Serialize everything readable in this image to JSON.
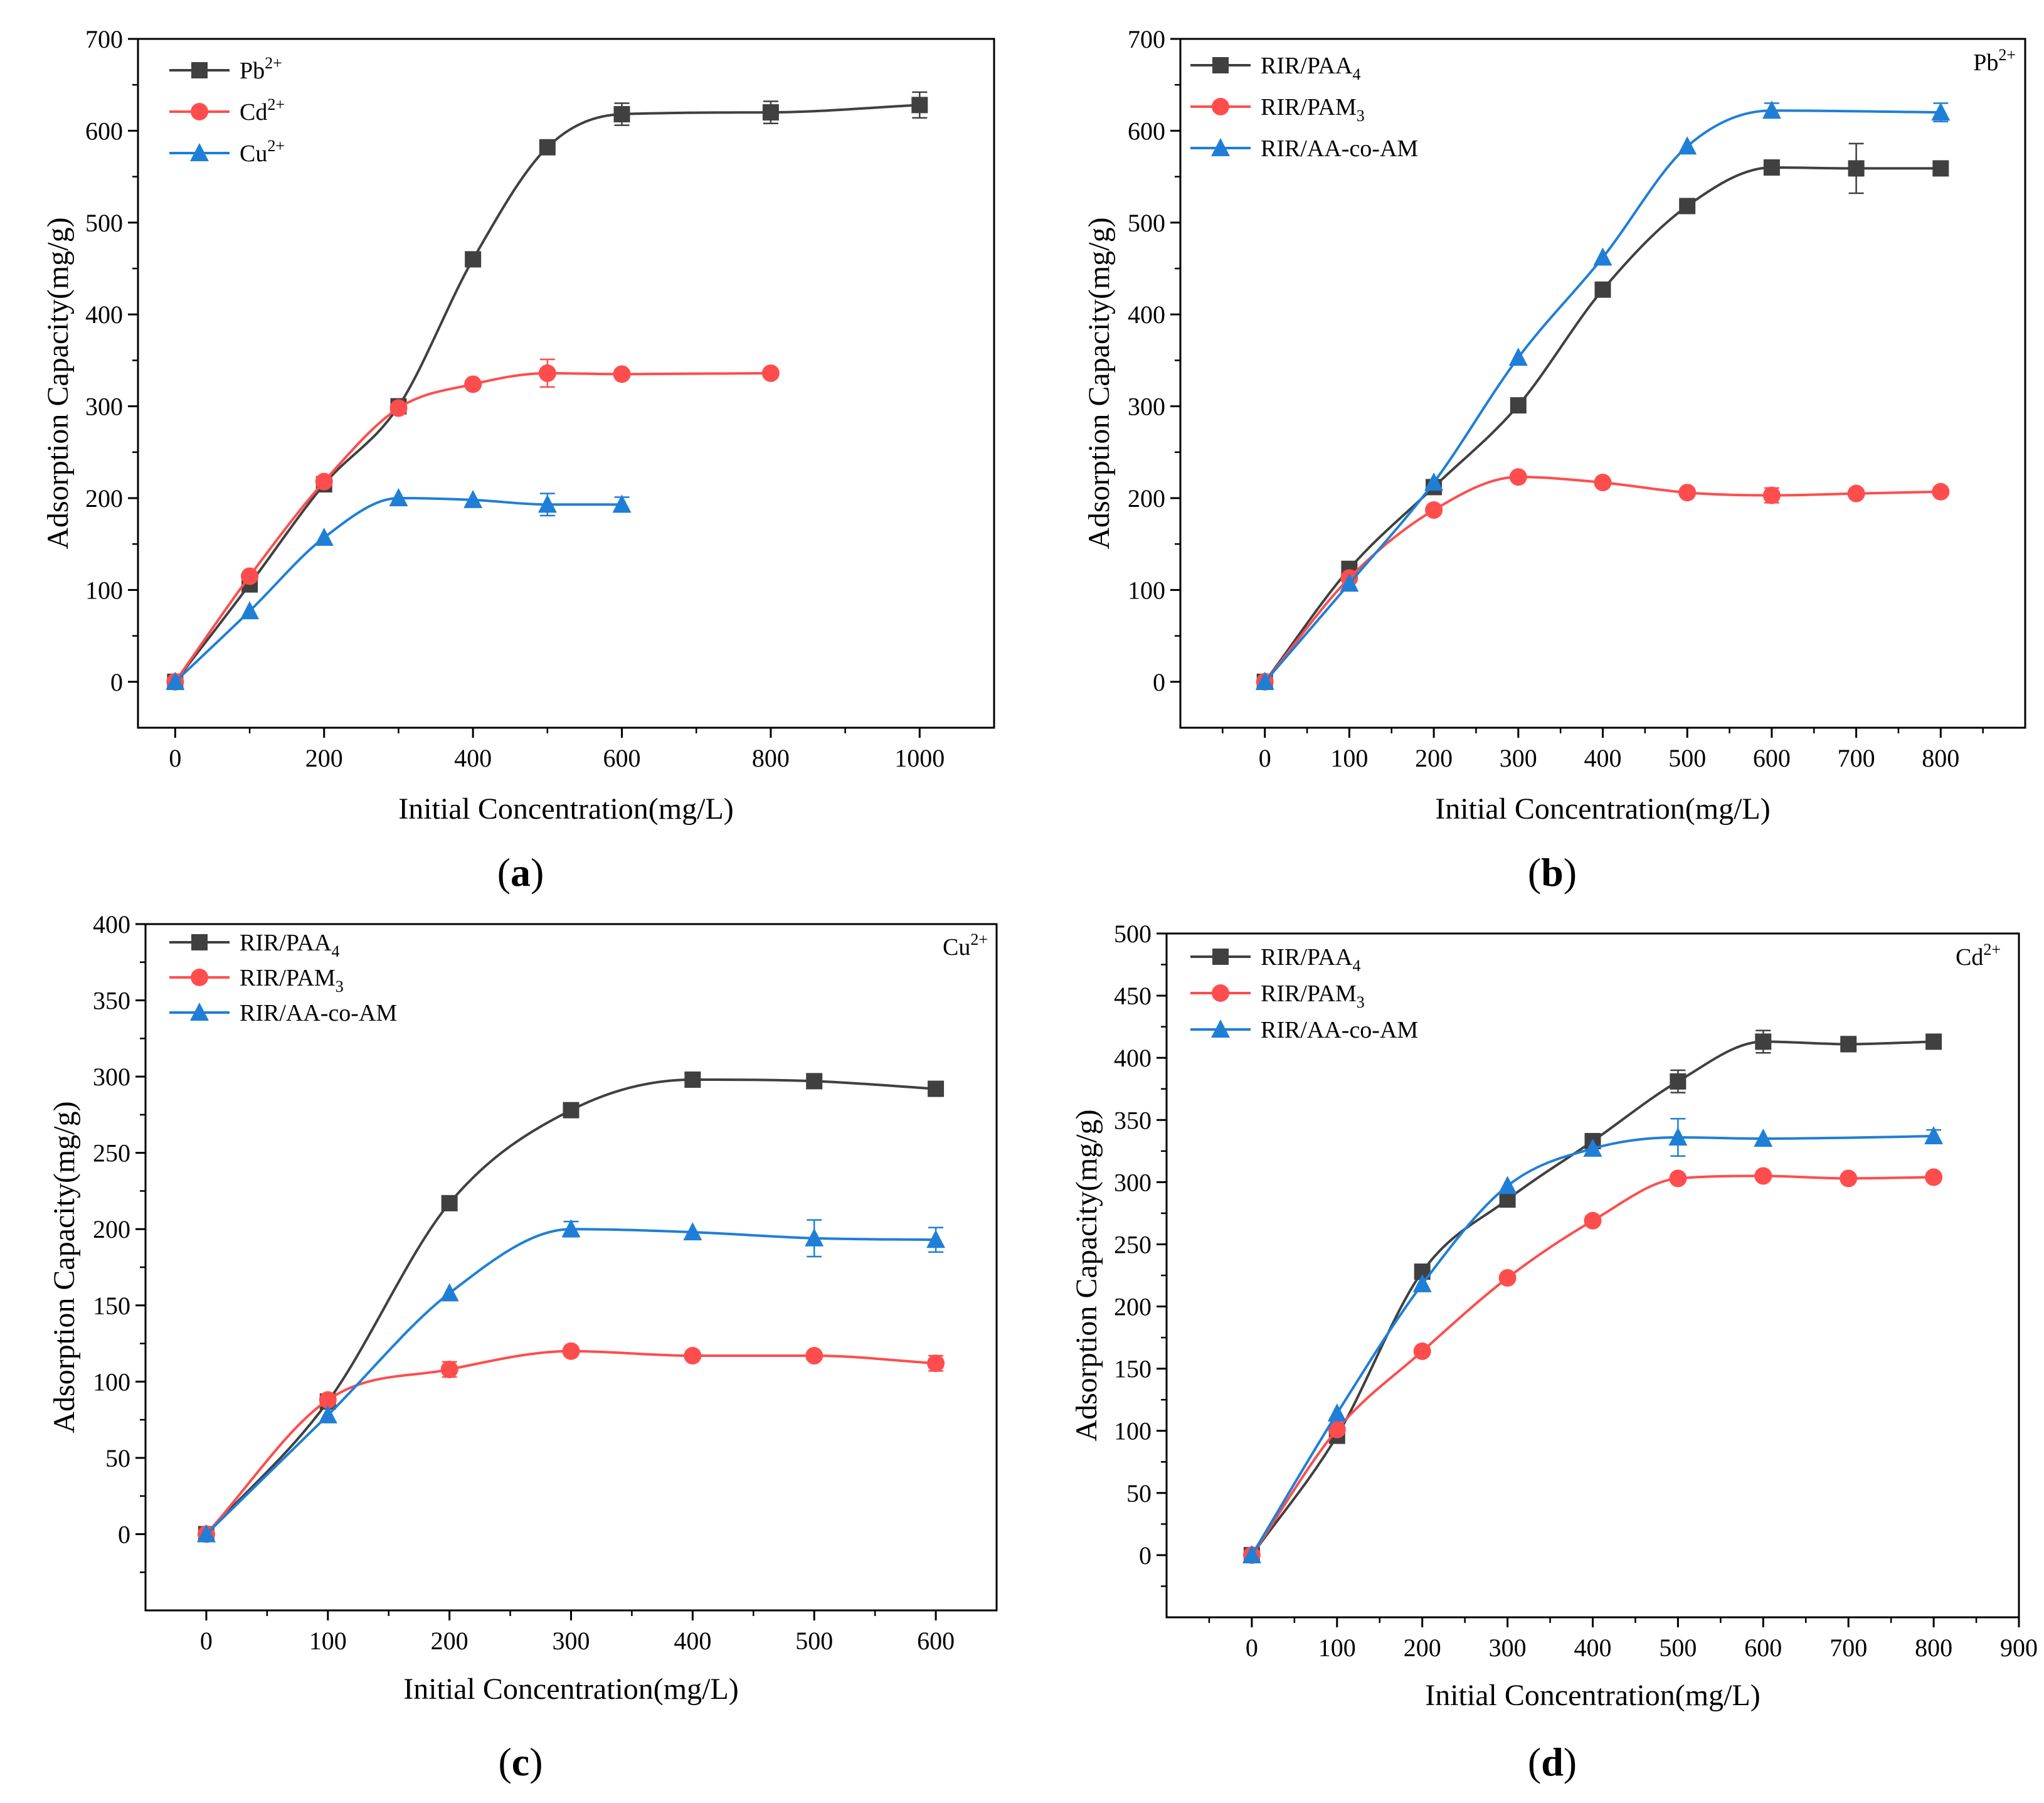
{
  "chart_data": [
    {
      "type": "line",
      "panel_label": "(a)",
      "panel_open": "(",
      "panel_letter": "a",
      "panel_close": ")",
      "corner_label": "",
      "corner_label_sup": "",
      "xlabel": "Initial Concentration(mg/L)",
      "ylabel": "Adsorption Capacity(mg/g)",
      "xlim": [
        -50,
        1100
      ],
      "ylim": [
        -50,
        700
      ],
      "xticks": [
        0,
        200,
        400,
        600,
        800,
        1000
      ],
      "yticks": [
        0,
        100,
        200,
        300,
        400,
        500,
        600,
        700
      ],
      "legend_position": "top-left",
      "series": [
        {
          "name": "Pb2+",
          "label_base": "Pb",
          "label_sup": "2+",
          "label_sub": "",
          "color": "#404040",
          "marker": "square",
          "x": [
            0,
            100,
            200,
            300,
            400,
            500,
            600,
            800,
            1000
          ],
          "values": [
            0,
            106,
            215,
            300,
            460,
            582,
            618,
            620,
            628
          ],
          "errors": [
            0,
            0,
            0,
            0,
            0,
            0,
            12,
            12,
            14
          ]
        },
        {
          "name": "Cd2+",
          "label_base": "Cd",
          "label_sup": "2+",
          "label_sub": "",
          "color": "#ff4d4d",
          "marker": "circle",
          "x": [
            0,
            100,
            200,
            300,
            400,
            500,
            600,
            800
          ],
          "values": [
            0,
            115,
            218,
            298,
            324,
            336,
            335,
            336
          ],
          "errors": [
            0,
            0,
            0,
            0,
            0,
            15,
            0,
            0
          ]
        },
        {
          "name": "Cu2+",
          "label_base": "Cu",
          "label_sup": "2+",
          "label_sub": "",
          "color": "#1f7fd6",
          "marker": "triangle",
          "x": [
            0,
            100,
            200,
            300,
            400,
            500,
            600
          ],
          "values": [
            0,
            77,
            157,
            200,
            198,
            193,
            193
          ],
          "errors": [
            0,
            0,
            0,
            0,
            0,
            12,
            8
          ]
        }
      ]
    },
    {
      "type": "line",
      "panel_label": "(b)",
      "panel_open": "(",
      "panel_letter": "b",
      "panel_close": ")",
      "corner_label": "Pb",
      "corner_label_sup": "2+",
      "xlabel": "Initial Concentration(mg/L)",
      "ylabel": "Adsorption Capacity(mg/g)",
      "xlim": [
        -100,
        900
      ],
      "ylim": [
        -50,
        700
      ],
      "xticks": [
        0,
        100,
        200,
        300,
        400,
        500,
        600,
        700,
        800
      ],
      "yticks": [
        0,
        100,
        200,
        300,
        400,
        500,
        600,
        700
      ],
      "legend_position": "top-left",
      "series": [
        {
          "name": "RIR/PAA4",
          "label_base": "RIR/PAA",
          "label_sup": "",
          "label_sub": "4",
          "color": "#404040",
          "marker": "square",
          "x": [
            0,
            100,
            200,
            300,
            400,
            500,
            600,
            700,
            800
          ],
          "values": [
            0,
            123,
            212,
            301,
            427,
            518,
            560,
            559,
            559
          ],
          "errors": [
            0,
            0,
            0,
            0,
            0,
            0,
            0,
            27,
            0
          ]
        },
        {
          "name": "RIR/PAM3",
          "label_base": "RIR/PAM",
          "label_sup": "",
          "label_sub": "3",
          "color": "#ff4d4d",
          "marker": "circle",
          "x": [
            0,
            100,
            200,
            300,
            400,
            500,
            600,
            700,
            800
          ],
          "values": [
            0,
            113,
            187,
            223,
            217,
            206,
            203,
            205,
            207
          ],
          "errors": [
            0,
            0,
            0,
            0,
            0,
            0,
            8,
            0,
            0
          ]
        },
        {
          "name": "RIR/AA-co-AM",
          "label_base": "RIR/AA-co-AM",
          "label_sup": "",
          "label_sub": "",
          "color": "#1f7fd6",
          "marker": "triangle",
          "x": [
            0,
            100,
            200,
            300,
            400,
            500,
            600,
            800
          ],
          "values": [
            0,
            107,
            217,
            353,
            462,
            583,
            622,
            620
          ],
          "errors": [
            0,
            0,
            0,
            0,
            0,
            0,
            8,
            10
          ]
        }
      ]
    },
    {
      "type": "line",
      "panel_label": "(c)",
      "panel_open": "(",
      "panel_letter": "c",
      "panel_close": ")",
      "corner_label": "Cu",
      "corner_label_sup": "2+",
      "xlabel": "Initial Concentration(mg/L)",
      "ylabel": "Adsorption Capacity(mg/g)",
      "xlim": [
        -50,
        650
      ],
      "ylim": [
        -50,
        400
      ],
      "xticks": [
        0,
        100,
        200,
        300,
        400,
        500,
        600
      ],
      "yticks": [
        0,
        50,
        100,
        150,
        200,
        250,
        300,
        350,
        400
      ],
      "legend_position": "top-left",
      "series": [
        {
          "name": "RIR/PAA4",
          "label_base": "RIR/PAA",
          "label_sup": "",
          "label_sub": "4",
          "color": "#404040",
          "marker": "square",
          "x": [
            0,
            100,
            200,
            300,
            400,
            500,
            600
          ],
          "values": [
            0,
            87,
            217,
            278,
            298,
            297,
            292
          ],
          "errors": [
            0,
            0,
            0,
            0,
            0,
            0,
            0
          ]
        },
        {
          "name": "RIR/PAM3",
          "label_base": "RIR/PAM",
          "label_sup": "",
          "label_sub": "3",
          "color": "#ff4d4d",
          "marker": "circle",
          "x": [
            0,
            100,
            200,
            300,
            400,
            500,
            600
          ],
          "values": [
            0,
            88,
            108,
            120,
            117,
            117,
            112
          ],
          "errors": [
            0,
            0,
            5,
            0,
            0,
            0,
            5
          ]
        },
        {
          "name": "RIR/AA-co-AM",
          "label_base": "RIR/AA-co-AM",
          "label_sup": "",
          "label_sub": "",
          "color": "#1f7fd6",
          "marker": "triangle",
          "x": [
            0,
            100,
            200,
            300,
            400,
            500,
            600
          ],
          "values": [
            0,
            78,
            158,
            200,
            198,
            194,
            193
          ],
          "errors": [
            0,
            0,
            0,
            5,
            0,
            12,
            8
          ]
        }
      ]
    },
    {
      "type": "line",
      "panel_label": "(d)",
      "panel_open": "(",
      "panel_letter": "d",
      "panel_close": ")",
      "corner_label": "Cd",
      "corner_label_sup": "2+",
      "xlabel": "Initial Concentration(mg/L)",
      "ylabel": "Adsorption Capacity(mg/g)",
      "xlim": [
        -100,
        900
      ],
      "ylim": [
        -50,
        500
      ],
      "xticks": [
        0,
        100,
        200,
        300,
        400,
        500,
        600,
        700,
        800,
        900
      ],
      "yticks": [
        0,
        50,
        100,
        150,
        200,
        250,
        300,
        350,
        400,
        450,
        500
      ],
      "legend_position": "top-left",
      "series": [
        {
          "name": "RIR/PAA4",
          "label_base": "RIR/PAA",
          "label_sup": "",
          "label_sub": "4",
          "color": "#404040",
          "marker": "square",
          "x": [
            0,
            100,
            200,
            300,
            400,
            500,
            600,
            700,
            800
          ],
          "values": [
            0,
            96,
            228,
            286,
            333,
            381,
            413,
            411,
            413
          ],
          "errors": [
            0,
            0,
            0,
            0,
            0,
            9,
            9,
            6,
            0
          ]
        },
        {
          "name": "RIR/PAM3",
          "label_base": "RIR/PAM",
          "label_sup": "",
          "label_sub": "3",
          "color": "#ff4d4d",
          "marker": "circle",
          "x": [
            0,
            100,
            200,
            300,
            400,
            500,
            600,
            700,
            800
          ],
          "values": [
            0,
            101,
            164,
            223,
            269,
            303,
            305,
            303,
            304
          ],
          "errors": [
            0,
            0,
            0,
            0,
            0,
            0,
            0,
            0,
            0
          ]
        },
        {
          "name": "RIR/AA-co-AM",
          "label_base": "RIR/AA-co-AM",
          "label_sup": "",
          "label_sub": "",
          "color": "#1f7fd6",
          "marker": "triangle",
          "x": [
            0,
            100,
            200,
            300,
            400,
            500,
            600,
            800
          ],
          "values": [
            0,
            114,
            218,
            297,
            327,
            336,
            335,
            337
          ],
          "errors": [
            0,
            0,
            0,
            0,
            0,
            15,
            0,
            5
          ]
        }
      ]
    }
  ]
}
